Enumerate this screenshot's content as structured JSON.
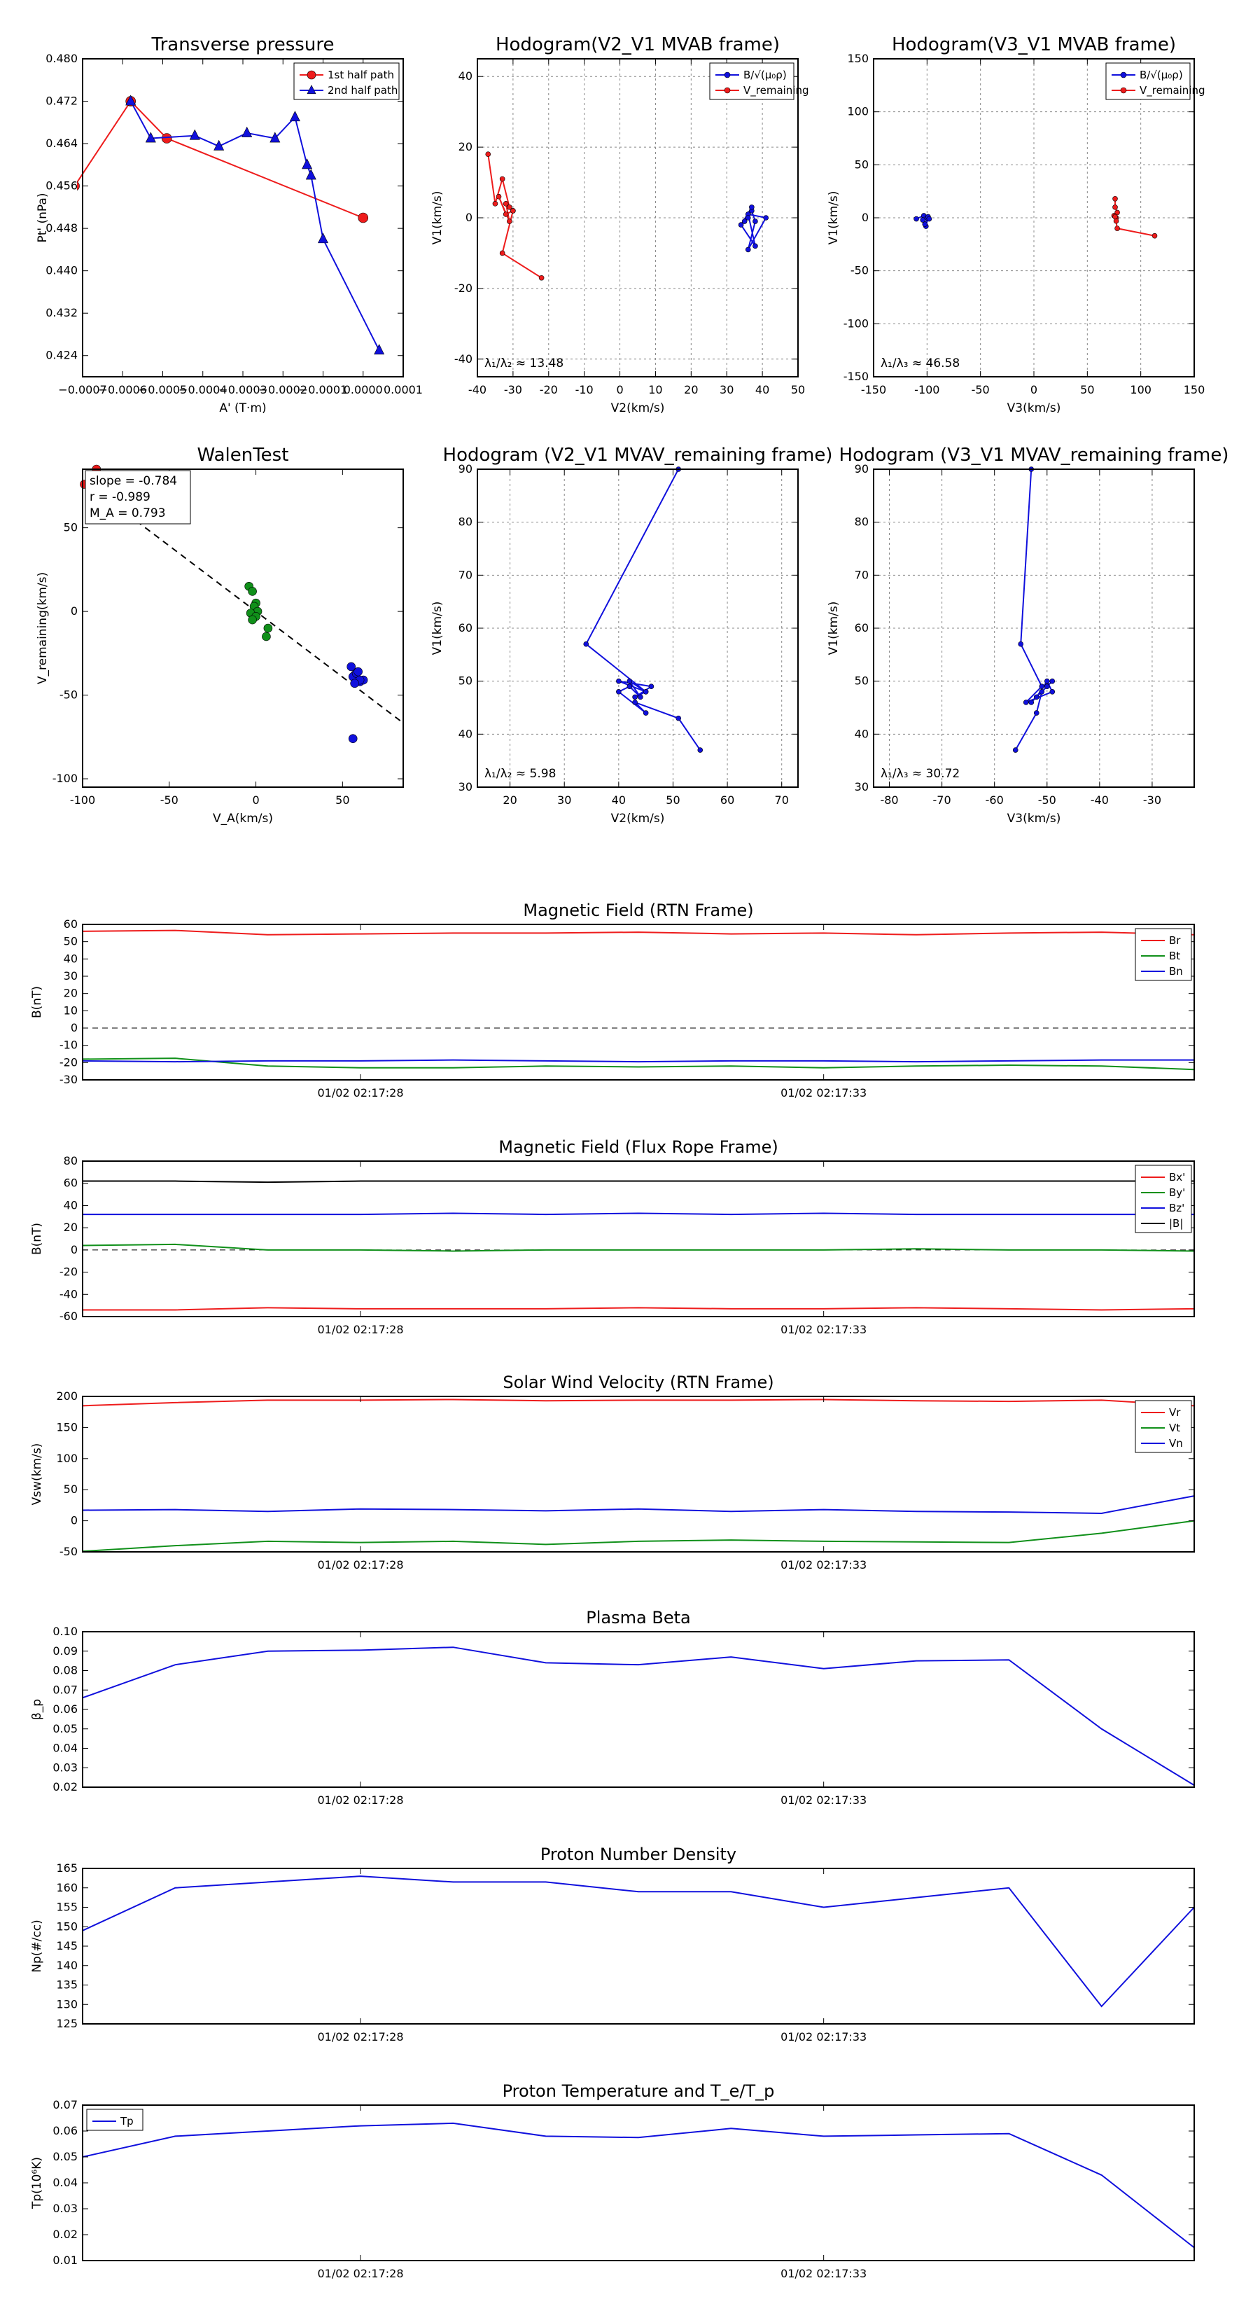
{
  "figure_title": "Flux rope analysis panels",
  "colors": {
    "red": "#ee1c1c",
    "blue": "#1010dd",
    "green": "#10901a",
    "black": "#000000",
    "grid": "#888888"
  },
  "chart_data": [
    {
      "id": "tp",
      "type": "line",
      "title": "Transverse pressure",
      "xlabel": "A' (T·m)",
      "ylabel": "Pt' (nPa)",
      "xlim": [
        -0.0007,
        0.0001
      ],
      "ylim": [
        0.42,
        0.48
      ],
      "xticks": [
        -0.0007,
        -0.0006,
        -0.0005,
        -0.0004,
        -0.0003,
        -0.0002,
        -0.0001,
        0.0,
        0.0001
      ],
      "xtick_labels": [
        "−0.0007",
        "−0.0006",
        "−0.0005",
        "−0.0004",
        "−0.0003",
        "−0.0002",
        "−0.0001",
        "0.0000",
        "0.0001"
      ],
      "yticks": [
        0.424,
        0.432,
        0.44,
        0.448,
        0.456,
        0.464,
        0.472,
        0.48
      ],
      "ytick_labels": [
        "0.424",
        "0.432",
        "0.440",
        "0.448",
        "0.456",
        "0.464",
        "0.472",
        "0.480"
      ],
      "legend": [
        "1st half path",
        "2nd half path"
      ],
      "series": [
        {
          "name": "1st half path",
          "color": "red",
          "marker": "circle",
          "x": [
            0.0,
            -0.00049,
            -0.00058,
            -0.00072
          ],
          "y": [
            0.45,
            0.465,
            0.472,
            0.456
          ]
        },
        {
          "name": "2nd half path",
          "color": "blue",
          "marker": "triangle",
          "x": [
            -0.00058,
            -0.00053,
            -0.00042,
            -0.00036,
            -0.00029,
            -0.00022,
            -0.00017,
            -0.00014,
            -0.00013,
            -0.0001,
            4e-05
          ],
          "y": [
            0.472,
            0.465,
            0.4655,
            0.4635,
            0.466,
            0.465,
            0.469,
            0.46,
            0.458,
            0.446,
            0.425
          ]
        }
      ]
    },
    {
      "id": "h1",
      "type": "scatter",
      "title": "Hodogram(V2_V1 MVAB frame)",
      "xlabel": "V2(km/s)",
      "ylabel": "V1(km/s)",
      "xlim": [
        -40,
        50
      ],
      "ylim": [
        -45,
        45
      ],
      "xticks": [
        -40,
        -30,
        -20,
        -10,
        0,
        10,
        20,
        30,
        40,
        50
      ],
      "yticks": [
        -40,
        -20,
        0,
        20,
        40
      ],
      "legend": [
        "B/√(μ₀ρ)",
        "V_remaining"
      ],
      "annotation": "λ₁/λ₂ ≈ 13.48",
      "series": [
        {
          "name": "B",
          "color": "blue",
          "x": [
            35,
            37,
            38,
            36,
            41,
            36,
            38,
            34,
            37,
            36
          ],
          "y": [
            -1,
            2,
            -1,
            -9,
            0,
            1,
            -8,
            -2,
            3,
            0
          ]
        },
        {
          "name": "V",
          "color": "red",
          "x": [
            -37,
            -35,
            -33,
            -31,
            -30,
            -32,
            -34,
            -31,
            -32,
            -30,
            -33,
            -22
          ],
          "y": [
            18,
            4,
            11,
            3,
            2,
            1,
            6,
            -1,
            4,
            2,
            -10,
            -17
          ]
        }
      ]
    },
    {
      "id": "h2",
      "type": "scatter",
      "title": "Hodogram(V3_V1 MVAB frame)",
      "xlabel": "V3(km/s)",
      "ylabel": "V1(km/s)",
      "xlim": [
        -150,
        150
      ],
      "ylim": [
        -150,
        150
      ],
      "xticks": [
        -150,
        -100,
        -50,
        0,
        50,
        100,
        150
      ],
      "yticks": [
        -150,
        -100,
        -50,
        0,
        50,
        100,
        150
      ],
      "legend": [
        "B/√(μ₀ρ)",
        "V_remaining"
      ],
      "annotation": "λ₁/λ₃ ≈ 46.58",
      "series": [
        {
          "name": "B",
          "color": "blue",
          "x": [
            -110,
            -103,
            -100,
            -101,
            -99,
            -102,
            -98,
            -104
          ],
          "y": [
            -1,
            2,
            0,
            -8,
            1,
            -6,
            -1,
            -2
          ]
        },
        {
          "name": "V",
          "color": "red",
          "x": [
            76,
            76,
            78,
            77,
            75,
            77,
            76,
            78,
            113
          ],
          "y": [
            18,
            10,
            5,
            0,
            2,
            -3,
            1,
            -10,
            -17
          ]
        }
      ]
    },
    {
      "id": "walen",
      "type": "scatter",
      "title": "WalenTest",
      "xlabel": "V_A(km/s)",
      "ylabel": "V_remaining(km/s)",
      "xlim": [
        -100,
        85
      ],
      "ylim": [
        -105,
        85
      ],
      "xticks": [
        -100,
        -50,
        0,
        50
      ],
      "yticks": [
        -100,
        -50,
        0,
        50
      ],
      "stats": [
        "slope = -0.784",
        "r = -0.989",
        "M_A = 0.793"
      ],
      "fit": {
        "slope": -0.784,
        "intercept": 0
      },
      "series": [
        {
          "name": "red",
          "color": "red",
          "x": [
            -92,
            -99
          ],
          "y": [
            85,
            76
          ]
        },
        {
          "name": "green",
          "color": "green",
          "x": [
            -4,
            -2,
            0,
            -1,
            1,
            -3,
            0,
            -2,
            7,
            6
          ],
          "y": [
            15,
            12,
            5,
            3,
            0,
            -1,
            -3,
            -5,
            -10,
            -15
          ]
        },
        {
          "name": "blue",
          "color": "blue",
          "x": [
            55,
            57,
            58,
            60,
            62,
            56,
            58,
            60,
            57,
            59,
            56
          ],
          "y": [
            -33,
            -38,
            -40,
            -42,
            -41,
            -39,
            -37,
            -41,
            -43,
            -36,
            -76
          ]
        }
      ]
    },
    {
      "id": "h3",
      "type": "line",
      "title": "Hodogram (V2_V1 MVAV_remaining frame)",
      "xlabel": "V2(km/s)",
      "ylabel": "V1(km/s)",
      "xlim": [
        14,
        73
      ],
      "ylim": [
        30,
        90
      ],
      "xticks": [
        20,
        30,
        40,
        50,
        60,
        70
      ],
      "yticks": [
        30,
        40,
        50,
        60,
        70,
        80,
        90
      ],
      "annotation": "λ₁/λ₂ ≈ 5.98",
      "series": [
        {
          "name": "V",
          "color": "blue",
          "x": [
            55,
            51,
            43,
            45,
            40,
            42,
            44,
            42,
            45,
            40,
            46,
            43,
            45,
            34,
            51
          ],
          "y": [
            37,
            43,
            46,
            44,
            48,
            49,
            47,
            50,
            48,
            50,
            49,
            47,
            48,
            57,
            90
          ]
        }
      ]
    },
    {
      "id": "h4",
      "type": "line",
      "title": "Hodogram (V3_V1 MVAV_remaining frame)",
      "xlabel": "V3(km/s)",
      "ylabel": "V1(km/s)",
      "xlim": [
        -83,
        -22
      ],
      "ylim": [
        30,
        90
      ],
      "xticks": [
        -80,
        -70,
        -60,
        -50,
        -40,
        -30
      ],
      "yticks": [
        30,
        40,
        50,
        60,
        70,
        80,
        90
      ],
      "annotation": "λ₁/λ₃ ≈ 30.72",
      "series": [
        {
          "name": "V",
          "color": "blue",
          "x": [
            -56,
            -52,
            -51,
            -53,
            -50,
            -49,
            -52,
            -50,
            -49,
            -54,
            -51,
            -55,
            -53
          ],
          "y": [
            37,
            44,
            48,
            46,
            49,
            50,
            47,
            50,
            48,
            46,
            49,
            57,
            90
          ]
        }
      ]
    },
    {
      "id": "bfield",
      "type": "line",
      "title": "Magnetic Field (RTN Frame)",
      "ylabel": "B(nT)",
      "ylim": [
        -30,
        60
      ],
      "yticks": [
        -30,
        -20,
        -10,
        0,
        10,
        20,
        30,
        40,
        50,
        60
      ],
      "xtick_labels": [
        "01/02 02:17:28",
        "01/02 02:17:33"
      ],
      "xtick_pos": [
        3,
        8
      ],
      "n": 13,
      "zero_line": true,
      "legend": [
        "Br",
        "Bt",
        "Bn"
      ],
      "series": [
        {
          "name": "Br",
          "color": "red",
          "values": [
            56,
            56.5,
            54,
            54.5,
            55,
            55,
            55.5,
            54.5,
            55,
            54,
            55,
            55.5,
            54
          ]
        },
        {
          "name": "Bt",
          "color": "green",
          "values": [
            -18,
            -17.5,
            -22,
            -23,
            -23,
            -22,
            -22.5,
            -22,
            -23,
            -22,
            -21.5,
            -22,
            -24
          ]
        },
        {
          "name": "Bn",
          "color": "blue",
          "values": [
            -19,
            -19.5,
            -19,
            -19,
            -18.5,
            -19,
            -19.5,
            -19,
            -19,
            -19.5,
            -19,
            -18.5,
            -18.5
          ]
        }
      ]
    },
    {
      "id": "bfr",
      "type": "line",
      "title": "Magnetic Field (Flux Rope Frame)",
      "ylabel": "B(nT)",
      "ylim": [
        -60,
        80
      ],
      "yticks": [
        -60,
        -40,
        -20,
        0,
        20,
        40,
        60,
        80
      ],
      "xtick_labels": [
        "01/02 02:17:28",
        "01/02 02:17:33"
      ],
      "xtick_pos": [
        3,
        8
      ],
      "n": 13,
      "zero_line": true,
      "legend": [
        "Bx'",
        "By'",
        "Bz'",
        "|B|"
      ],
      "series": [
        {
          "name": "Bx'",
          "color": "red",
          "values": [
            -54,
            -54,
            -52,
            -53,
            -53,
            -53,
            -52,
            -53,
            -53,
            -52,
            -53,
            -54,
            -53
          ]
        },
        {
          "name": "By'",
          "color": "green",
          "values": [
            4,
            5,
            0,
            0,
            -1,
            0,
            0,
            0,
            0,
            1,
            0,
            0,
            -1
          ]
        },
        {
          "name": "Bz'",
          "color": "blue",
          "values": [
            32,
            32,
            32,
            32,
            33,
            32,
            33,
            32,
            33,
            32,
            32,
            32,
            32
          ]
        },
        {
          "name": "|B|",
          "color": "black",
          "values": [
            62,
            62,
            61,
            62,
            62,
            62,
            62,
            62,
            62,
            62,
            62,
            62,
            62
          ]
        }
      ]
    },
    {
      "id": "vsw",
      "type": "line",
      "title": "Solar Wind Velocity (RTN Frame)",
      "ylabel": "Vsw(km/s)",
      "ylim": [
        -50,
        200
      ],
      "yticks": [
        -50,
        0,
        50,
        100,
        150,
        200
      ],
      "xtick_labels": [
        "01/02 02:17:28",
        "01/02 02:17:33"
      ],
      "xtick_pos": [
        3,
        8
      ],
      "n": 13,
      "legend": [
        "Vr",
        "Vt",
        "Vn"
      ],
      "series": [
        {
          "name": "Vr",
          "color": "red",
          "values": [
            185,
            190,
            194,
            194,
            195,
            193,
            194,
            194,
            195,
            193,
            192,
            194,
            185
          ]
        },
        {
          "name": "Vt",
          "color": "green",
          "values": [
            -49,
            -40,
            -33,
            -35,
            -33,
            -38,
            -33,
            -31,
            -33,
            -34,
            -35,
            -20,
            0
          ]
        },
        {
          "name": "Vn",
          "color": "blue",
          "values": [
            17,
            18,
            15,
            19,
            18,
            16,
            19,
            15,
            18,
            15,
            14,
            12,
            40
          ]
        }
      ]
    },
    {
      "id": "beta",
      "type": "line",
      "title": "Plasma Beta",
      "ylabel": "β_p",
      "ylim": [
        0.02,
        0.1
      ],
      "yticks": [
        0.02,
        0.03,
        0.04,
        0.05,
        0.06,
        0.07,
        0.08,
        0.09,
        0.1
      ],
      "ytick_labels": [
        "0.02",
        "0.03",
        "0.04",
        "0.05",
        "0.06",
        "0.07",
        "0.08",
        "0.09",
        "0.10"
      ],
      "xtick_labels": [
        "01/02 02:17:28",
        "01/02 02:17:33"
      ],
      "xtick_pos": [
        3,
        8
      ],
      "n": 13,
      "series": [
        {
          "name": "beta",
          "color": "blue",
          "values": [
            0.066,
            0.083,
            0.09,
            0.0905,
            0.092,
            0.084,
            0.083,
            0.087,
            0.081,
            0.085,
            0.0855,
            0.05,
            0.021
          ]
        }
      ]
    },
    {
      "id": "np",
      "type": "line",
      "title": "Proton Number Density",
      "ylabel": "Np(#/cc)",
      "ylim": [
        125,
        165
      ],
      "yticks": [
        125,
        130,
        135,
        140,
        145,
        150,
        155,
        160,
        165
      ],
      "xtick_labels": [
        "01/02 02:17:28",
        "01/02 02:17:33"
      ],
      "xtick_pos": [
        3,
        8
      ],
      "n": 13,
      "series": [
        {
          "name": "Np",
          "color": "blue",
          "values": [
            149,
            160,
            161.5,
            163,
            161.5,
            161.5,
            159,
            159,
            155,
            157.5,
            160,
            129.5,
            155
          ]
        }
      ]
    },
    {
      "id": "tp2",
      "type": "line",
      "title": "Proton Temperature and T_e/T_p",
      "ylabel": "Tp(10⁶K)",
      "ylim": [
        0.01,
        0.07
      ],
      "yticks": [
        0.01,
        0.02,
        0.03,
        0.04,
        0.05,
        0.06,
        0.07
      ],
      "ytick_labels": [
        "0.01",
        "0.02",
        "0.03",
        "0.04",
        "0.05",
        "0.06",
        "0.07"
      ],
      "xtick_labels": [
        "01/02 02:17:28",
        "01/02 02:17:33"
      ],
      "xtick_pos": [
        3,
        8
      ],
      "n": 13,
      "legend": [
        "Tp"
      ],
      "series": [
        {
          "name": "Tp",
          "color": "blue",
          "values": [
            0.05,
            0.058,
            0.06,
            0.062,
            0.063,
            0.058,
            0.0575,
            0.061,
            0.058,
            0.0585,
            0.059,
            0.043,
            0.015
          ]
        }
      ]
    }
  ]
}
